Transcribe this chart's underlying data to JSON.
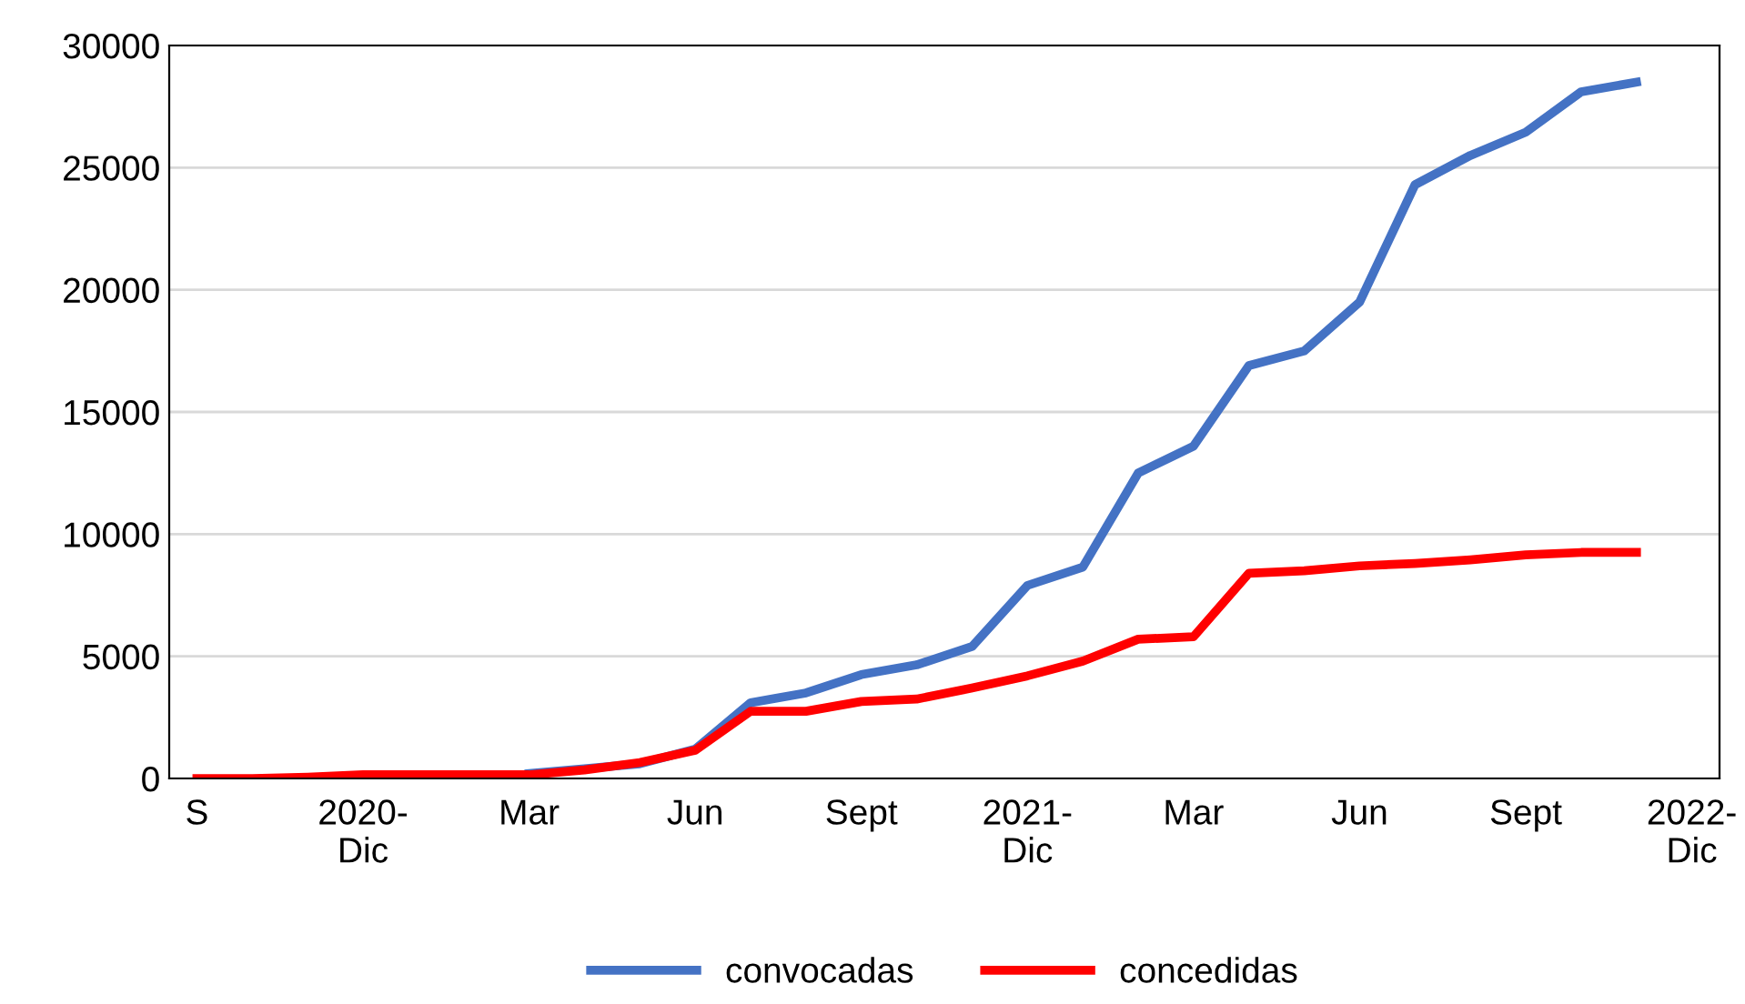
{
  "chart_data": {
    "type": "line",
    "categories": [
      "S",
      null,
      null,
      "2020-Dic",
      null,
      null,
      "Mar",
      null,
      null,
      "Jun",
      null,
      null,
      "Sept",
      null,
      null,
      "2021-Dic",
      null,
      null,
      "Mar",
      null,
      null,
      "Jun",
      null,
      null,
      "Sept",
      null,
      null,
      "2022-Dic"
    ],
    "series": [
      {
        "name": "convocadas",
        "color": "#4472c4",
        "values": [
          null,
          null,
          null,
          null,
          null,
          null,
          200,
          400,
          600,
          1200,
          3100,
          3500,
          4250,
          4650,
          5400,
          7900,
          8650,
          12500,
          13600,
          16900,
          17500,
          19500,
          24300,
          25500,
          26450,
          28100,
          28500,
          null
        ]
      },
      {
        "name": "concedidas",
        "color": "#ff0000",
        "values": [
          0,
          0,
          50,
          150,
          150,
          150,
          150,
          350,
          650,
          1150,
          2750,
          2750,
          3150,
          3250,
          3700,
          4200,
          4800,
          5700,
          5800,
          8400,
          8500,
          8700,
          8800,
          8950,
          9150,
          9250,
          9250,
          null
        ]
      }
    ],
    "ylim": [
      0,
      30000
    ],
    "yticks": [
      0,
      5000,
      10000,
      15000,
      20000,
      25000,
      30000
    ],
    "grid": "y",
    "legend": "bottom",
    "marker": "none",
    "line_style": "solid"
  }
}
